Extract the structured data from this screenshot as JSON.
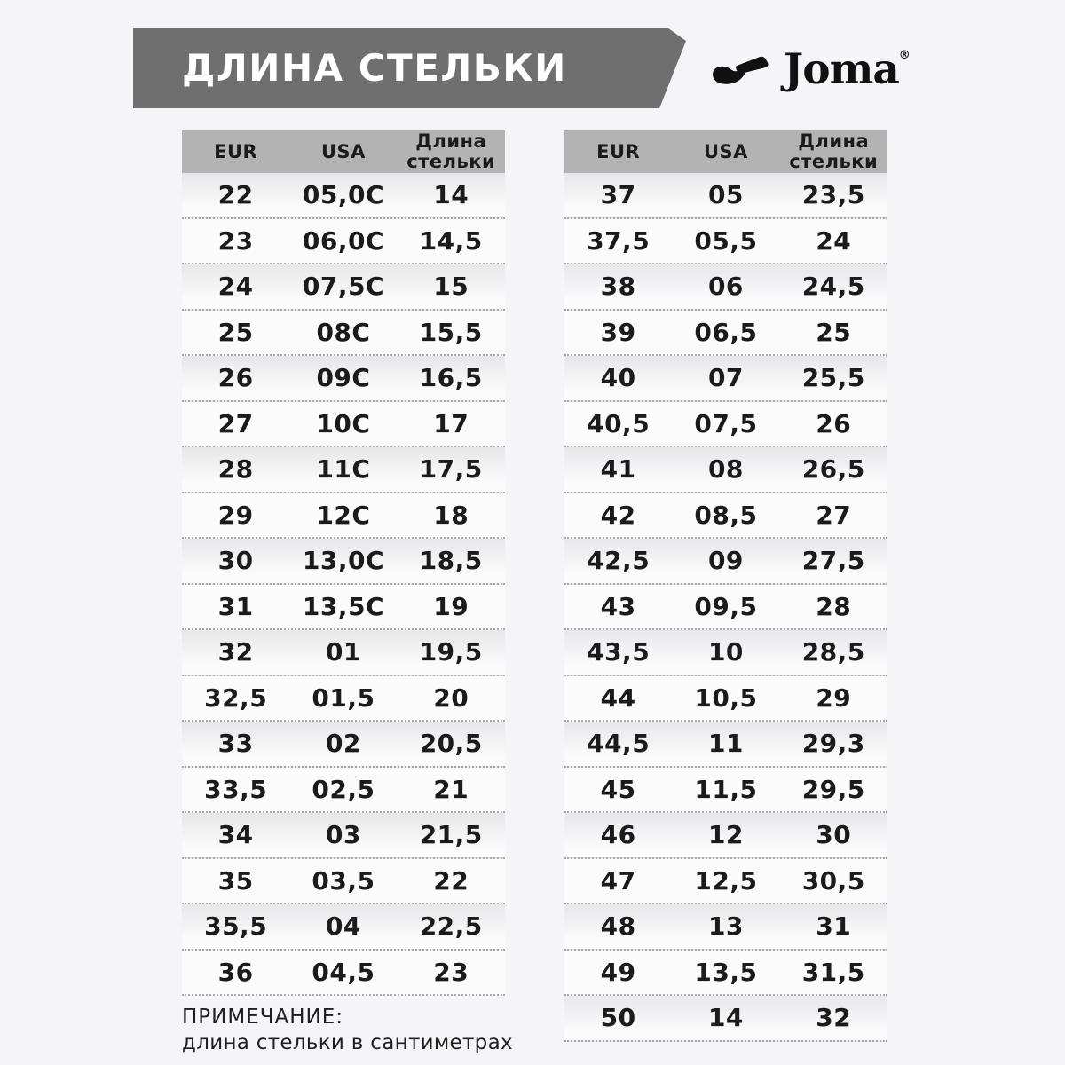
{
  "banner": {
    "title": "ДЛИНА СТЕЛЬКИ"
  },
  "logo": {
    "brand": "Joma",
    "registered": "®"
  },
  "tables": {
    "headers": [
      "EUR",
      "USA",
      "Длина стельки"
    ],
    "left": {
      "rows": [
        [
          "22",
          "05,0C",
          "14"
        ],
        [
          "23",
          "06,0C",
          "14,5"
        ],
        [
          "24",
          "07,5C",
          "15"
        ],
        [
          "25",
          "08C",
          "15,5"
        ],
        [
          "26",
          "09C",
          "16,5"
        ],
        [
          "27",
          "10C",
          "17"
        ],
        [
          "28",
          "11C",
          "17,5"
        ],
        [
          "29",
          "12C",
          "18"
        ],
        [
          "30",
          "13,0C",
          "18,5"
        ],
        [
          "31",
          "13,5C",
          "19"
        ],
        [
          "32",
          "01",
          "19,5"
        ],
        [
          "32,5",
          "01,5",
          "20"
        ],
        [
          "33",
          "02",
          "20,5"
        ],
        [
          "33,5",
          "02,5",
          "21"
        ],
        [
          "34",
          "03",
          "21,5"
        ],
        [
          "35",
          "03,5",
          "22"
        ],
        [
          "35,5",
          "04",
          "22,5"
        ],
        [
          "36",
          "04,5",
          "23"
        ]
      ]
    },
    "right": {
      "rows": [
        [
          "37",
          "05",
          "23,5"
        ],
        [
          "37,5",
          "05,5",
          "24"
        ],
        [
          "38",
          "06",
          "24,5"
        ],
        [
          "39",
          "06,5",
          "25"
        ],
        [
          "40",
          "07",
          "25,5"
        ],
        [
          "40,5",
          "07,5",
          "26"
        ],
        [
          "41",
          "08",
          "26,5"
        ],
        [
          "42",
          "08,5",
          "27"
        ],
        [
          "42,5",
          "09",
          "27,5"
        ],
        [
          "43",
          "09,5",
          "28"
        ],
        [
          "43,5",
          "10",
          "28,5"
        ],
        [
          "44",
          "10,5",
          "29"
        ],
        [
          "44,5",
          "11",
          "29,3"
        ],
        [
          "45",
          "11,5",
          "29,5"
        ],
        [
          "46",
          "12",
          "30"
        ],
        [
          "47",
          "12,5",
          "30,5"
        ],
        [
          "48",
          "13",
          "31"
        ],
        [
          "49",
          "13,5",
          "31,5"
        ],
        [
          "50",
          "14",
          "32"
        ]
      ]
    }
  },
  "note": {
    "title": "ПРИМЕЧАНИЕ:",
    "text": "длина стельки в сантиметрах"
  },
  "colors": {
    "page_background": "#f5f5f7",
    "banner_background": "#6f6f6f",
    "banner_text": "#ffffff",
    "table_header_background": "#b3b3b4",
    "row_shade_top": "#e7e7e9",
    "row_background": "#fbfbfc",
    "separator_dots": "#a9a9a9",
    "text": "#1b1b1b",
    "logo": "#111111"
  }
}
